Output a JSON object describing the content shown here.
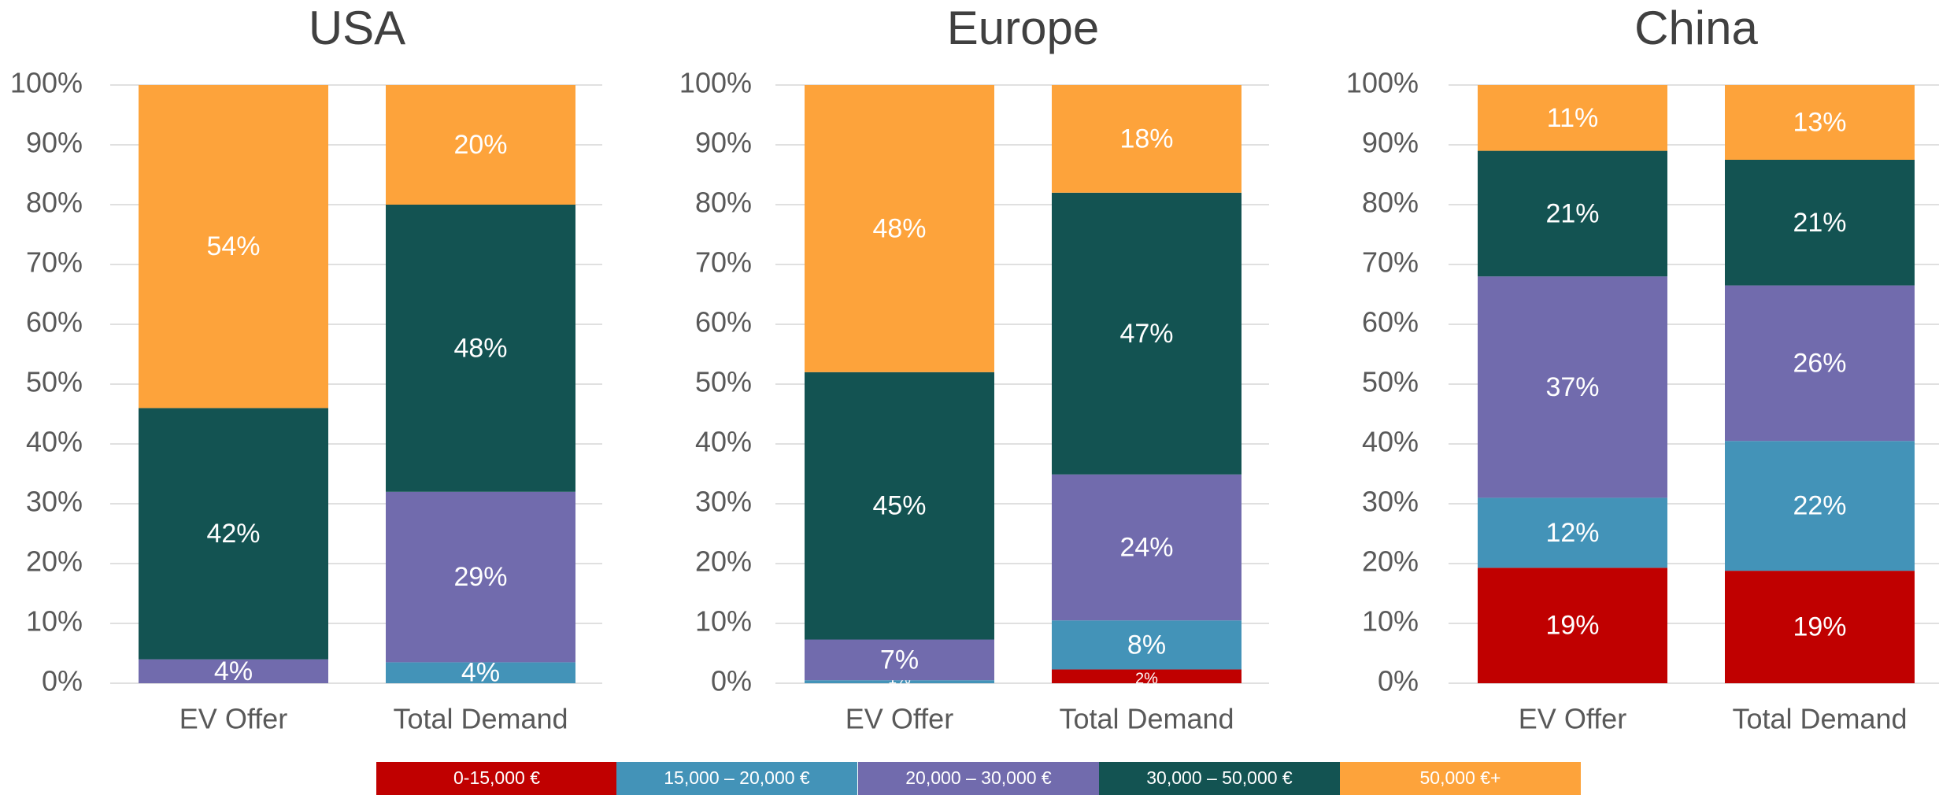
{
  "chart_data": [
    {
      "type": "stacked_bar",
      "title": "USA",
      "categories": [
        "EV Offer",
        "Total Demand"
      ],
      "ylim": [
        0,
        100
      ],
      "yticks": [
        {
          "value": 0,
          "label": "0%"
        },
        {
          "value": 10,
          "label": "10%"
        },
        {
          "value": 20,
          "label": "20%"
        },
        {
          "value": 30,
          "label": "30%"
        },
        {
          "value": 40,
          "label": "40%"
        },
        {
          "value": 50,
          "label": "50%"
        },
        {
          "value": 60,
          "label": "60%"
        },
        {
          "value": 70,
          "label": "70%"
        },
        {
          "value": 80,
          "label": "80%"
        },
        {
          "value": 90,
          "label": "90%"
        },
        {
          "value": 100,
          "label": "100%"
        }
      ],
      "grid": true,
      "series": [
        {
          "name": "0-15,000 €",
          "color": "#c00000",
          "values": [
            0,
            0
          ],
          "value_labels": [
            null,
            null
          ]
        },
        {
          "name": "15,000 – 20,000 €",
          "color": "#4393b8",
          "values": [
            0,
            3.5
          ],
          "value_labels": [
            null,
            "4%"
          ]
        },
        {
          "name": "20,000 – 30,000 €",
          "color": "#716bad",
          "values": [
            4,
            28.5
          ],
          "value_labels": [
            "4%",
            "29%"
          ]
        },
        {
          "name": "30,000 – 50,000 €",
          "color": "#135352",
          "values": [
            42,
            48
          ],
          "value_labels": [
            "42%",
            "48%"
          ]
        },
        {
          "name": "50,000 €+",
          "color": "#fda33b",
          "values": [
            54,
            20
          ],
          "value_labels": [
            "54%",
            "20%"
          ]
        }
      ]
    },
    {
      "type": "stacked_bar",
      "title": "Europe",
      "categories": [
        "EV Offer",
        "Total Demand"
      ],
      "ylim": [
        0,
        100
      ],
      "yticks": [
        {
          "value": 0,
          "label": "0%"
        },
        {
          "value": 10,
          "label": "10%"
        },
        {
          "value": 20,
          "label": "20%"
        },
        {
          "value": 30,
          "label": "30%"
        },
        {
          "value": 40,
          "label": "40%"
        },
        {
          "value": 50,
          "label": "50%"
        },
        {
          "value": 60,
          "label": "60%"
        },
        {
          "value": 70,
          "label": "70%"
        },
        {
          "value": 80,
          "label": "80%"
        },
        {
          "value": 90,
          "label": "90%"
        },
        {
          "value": 100,
          "label": "100%"
        }
      ],
      "grid": true,
      "series": [
        {
          "name": "0-15,000 €",
          "color": "#c00000",
          "values": [
            0,
            2.3
          ],
          "value_labels": [
            null,
            "2%"
          ]
        },
        {
          "name": "15,000 – 20,000 €",
          "color": "#4393b8",
          "values": [
            0.5,
            8.2
          ],
          "value_labels": [
            "1%",
            "8%"
          ]
        },
        {
          "name": "20,000 – 30,000 €",
          "color": "#716bad",
          "values": [
            6.8,
            24.4
          ],
          "value_labels": [
            "7%",
            "24%"
          ]
        },
        {
          "name": "30,000 – 50,000 €",
          "color": "#135352",
          "values": [
            44.7,
            47.1
          ],
          "value_labels": [
            "45%",
            "47%"
          ]
        },
        {
          "name": "50,000 €+",
          "color": "#fda33b",
          "values": [
            48,
            18
          ],
          "value_labels": [
            "48%",
            "18%"
          ]
        }
      ]
    },
    {
      "type": "stacked_bar",
      "title": "China",
      "categories": [
        "EV Offer",
        "Total Demand"
      ],
      "ylim": [
        0,
        100
      ],
      "yticks": [
        {
          "value": 0,
          "label": "0%"
        },
        {
          "value": 10,
          "label": "10%"
        },
        {
          "value": 20,
          "label": "20%"
        },
        {
          "value": 30,
          "label": "30%"
        },
        {
          "value": 40,
          "label": "40%"
        },
        {
          "value": 50,
          "label": "50%"
        },
        {
          "value": 60,
          "label": "60%"
        },
        {
          "value": 70,
          "label": "70%"
        },
        {
          "value": 80,
          "label": "80%"
        },
        {
          "value": 90,
          "label": "90%"
        },
        {
          "value": 100,
          "label": "100%"
        }
      ],
      "grid": true,
      "series": [
        {
          "name": "0-15,000 €",
          "color": "#c00000",
          "values": [
            19.3,
            18.8
          ],
          "value_labels": [
            "19%",
            "19%"
          ]
        },
        {
          "name": "15,000 – 20,000 €",
          "color": "#4393b8",
          "values": [
            11.7,
            21.7
          ],
          "value_labels": [
            "12%",
            "22%"
          ]
        },
        {
          "name": "20,000 – 30,000 €",
          "color": "#716bad",
          "values": [
            37,
            26
          ],
          "value_labels": [
            "37%",
            "26%"
          ]
        },
        {
          "name": "30,000 – 50,000 €",
          "color": "#135352",
          "values": [
            21,
            21
          ],
          "value_labels": [
            "21%",
            "21%"
          ]
        },
        {
          "name": "50,000 €+",
          "color": "#fda33b",
          "values": [
            11,
            12.5
          ],
          "value_labels": [
            "11%",
            "13%"
          ]
        }
      ]
    }
  ]
}
